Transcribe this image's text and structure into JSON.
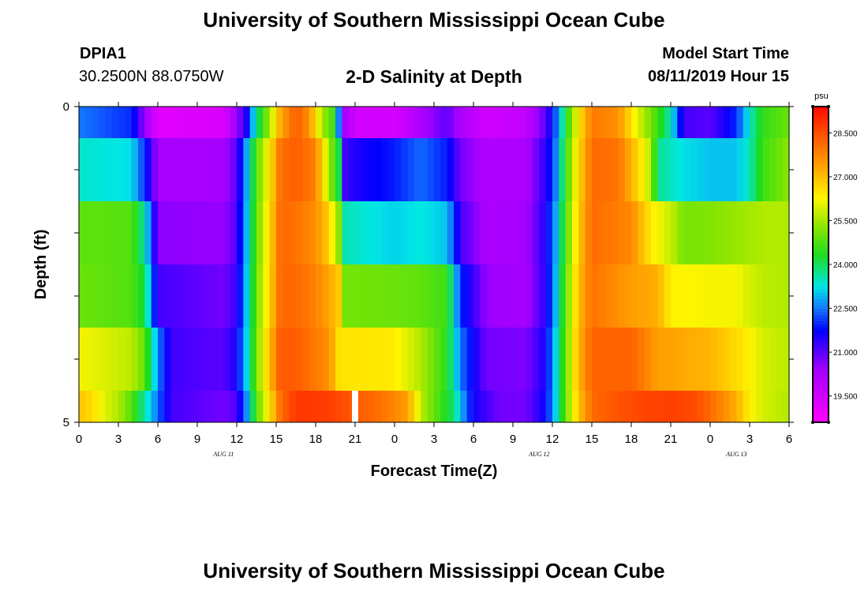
{
  "header": {
    "title": "University of Southern Mississippi Ocean Cube",
    "station": "DPIA1",
    "coords": "30.2500N 88.0750W",
    "chart_title": "2-D Salinity at Depth",
    "model_start_label": "Model Start Time",
    "model_start_value": "08/11/2019 Hour 15",
    "footer_title": "University of Southern Mississippi Ocean Cube"
  },
  "chart_data": {
    "type": "heatmap",
    "title": "2-D Salinity at Depth",
    "xlabel": "Forecast Time(Z)",
    "ylabel": "Depth (ft)",
    "units": "psu",
    "x_tick_labels": [
      "0",
      "3",
      "6",
      "9",
      "12",
      "15",
      "18",
      "21",
      "0",
      "3",
      "6",
      "9",
      "12",
      "15",
      "18",
      "21",
      "0",
      "3",
      "6"
    ],
    "y_tick_labels": [
      "0",
      "5"
    ],
    "y_range": [
      0,
      5
    ],
    "x_range_hours": [
      0,
      54
    ],
    "date_labels": [
      {
        "label": "AUG 11",
        "hour": 11
      },
      {
        "label": "AUG 12",
        "hour": 35
      },
      {
        "label": "AUG 13",
        "hour": 50
      }
    ],
    "colorbar": {
      "min": 18.6,
      "max": 29.4,
      "tick_values": [
        28.5,
        27.0,
        25.5,
        24.0,
        22.5,
        21.0,
        19.5
      ],
      "tick_labels": [
        "28.500",
        "27.000",
        "25.500",
        "24.000",
        "22.500",
        "21.000",
        "19.500"
      ]
    },
    "missing_marker": {
      "hour": 21,
      "layer": 5
    },
    "layers": [
      {
        "depth_range": "0-0.5",
        "salinity": [
          [
            0,
            22.5
          ],
          [
            4,
            22.0
          ],
          [
            5,
            20.5
          ],
          [
            6,
            19.2
          ],
          [
            11,
            19.3
          ],
          [
            12,
            20.5
          ],
          [
            12.7,
            21.4
          ],
          [
            13.5,
            23.7
          ],
          [
            14.5,
            25.5
          ],
          [
            15.3,
            27.2
          ],
          [
            16.5,
            28.3
          ],
          [
            17.5,
            27.6
          ],
          [
            18.5,
            25.5
          ],
          [
            19.5,
            24.5
          ],
          [
            20,
            20.6
          ],
          [
            21,
            19.5
          ],
          [
            24,
            19.4
          ],
          [
            26,
            20.2
          ],
          [
            28,
            21.0
          ],
          [
            29,
            20.2
          ],
          [
            31,
            19.5
          ],
          [
            34,
            19.8
          ],
          [
            35.5,
            21.0
          ],
          [
            36.3,
            22.4
          ],
          [
            37,
            24.2
          ],
          [
            38,
            26.4
          ],
          [
            39,
            27.9
          ],
          [
            41,
            27.6
          ],
          [
            42.5,
            26.0
          ],
          [
            44,
            24.6
          ],
          [
            45,
            23.5
          ],
          [
            46,
            21.2
          ],
          [
            48,
            21.0
          ],
          [
            50,
            22.0
          ],
          [
            51,
            23.4
          ],
          [
            52,
            24.5
          ],
          [
            54,
            25.0
          ]
        ]
      },
      {
        "depth_range": "0.5-1.5",
        "salinity": [
          [
            0,
            23.4
          ],
          [
            4,
            23.2
          ],
          [
            5,
            22.0
          ],
          [
            6,
            20.3
          ],
          [
            11,
            20.3
          ],
          [
            12,
            21.0
          ],
          [
            12.7,
            22.7
          ],
          [
            13.5,
            24.8
          ],
          [
            14.5,
            26.4
          ],
          [
            15.3,
            28.0
          ],
          [
            16.5,
            28.3
          ],
          [
            18,
            27.8
          ],
          [
            19,
            25.5
          ],
          [
            19.8,
            24.0
          ],
          [
            20,
            21.1
          ],
          [
            21,
            21.5
          ],
          [
            24,
            21.9
          ],
          [
            26,
            22.4
          ],
          [
            28,
            21.9
          ],
          [
            29,
            20.8
          ],
          [
            31,
            20.1
          ],
          [
            34,
            20.2
          ],
          [
            35.5,
            21.4
          ],
          [
            36.3,
            22.6
          ],
          [
            37,
            24.5
          ],
          [
            38,
            26.6
          ],
          [
            39,
            28.1
          ],
          [
            41,
            28.0
          ],
          [
            42.5,
            26.7
          ],
          [
            43.5,
            25.6
          ],
          [
            44,
            23.7
          ],
          [
            46,
            23.2
          ],
          [
            48,
            23.0
          ],
          [
            50,
            23.0
          ],
          [
            51,
            23.5
          ],
          [
            52,
            24.6
          ],
          [
            54,
            25.3
          ]
        ]
      },
      {
        "depth_range": "1.5-2.5",
        "salinity": [
          [
            0,
            24.9
          ],
          [
            4,
            24.8
          ],
          [
            5,
            23.6
          ],
          [
            6,
            20.6
          ],
          [
            11,
            20.5
          ],
          [
            12,
            21.1
          ],
          [
            12.7,
            22.8
          ],
          [
            13.5,
            24.9
          ],
          [
            14.5,
            26.6
          ],
          [
            15.3,
            28.1
          ],
          [
            16.5,
            28.0
          ],
          [
            18,
            27.6
          ],
          [
            19,
            26.8
          ],
          [
            19.8,
            25.2
          ],
          [
            20,
            23.6
          ],
          [
            21,
            23.4
          ],
          [
            24,
            23.1
          ],
          [
            26,
            23.3
          ],
          [
            28,
            23.0
          ],
          [
            29,
            21.2
          ],
          [
            31,
            20.2
          ],
          [
            34,
            20.3
          ],
          [
            35.5,
            21.5
          ],
          [
            36.3,
            22.9
          ],
          [
            37,
            24.7
          ],
          [
            38,
            26.8
          ],
          [
            39,
            28.1
          ],
          [
            42,
            27.7
          ],
          [
            43.5,
            26.4
          ],
          [
            45,
            25.8
          ],
          [
            46,
            25.1
          ],
          [
            48,
            25.2
          ],
          [
            50,
            25.4
          ],
          [
            51,
            25.5
          ],
          [
            52,
            25.6
          ],
          [
            54,
            25.6
          ]
        ]
      },
      {
        "depth_range": "2.5-3.5",
        "salinity": [
          [
            0,
            25.0
          ],
          [
            4,
            24.8
          ],
          [
            5,
            24.1
          ],
          [
            6,
            21.2
          ],
          [
            11,
            20.8
          ],
          [
            12,
            21.3
          ],
          [
            12.7,
            22.9
          ],
          [
            13.5,
            25.0
          ],
          [
            14.5,
            26.7
          ],
          [
            15.3,
            28.1
          ],
          [
            16.5,
            28.1
          ],
          [
            18,
            27.8
          ],
          [
            19,
            27.3
          ],
          [
            19.8,
            26.8
          ],
          [
            20,
            25.1
          ],
          [
            24,
            25.0
          ],
          [
            26,
            24.9
          ],
          [
            28,
            24.6
          ],
          [
            29,
            22.0
          ],
          [
            31,
            20.5
          ],
          [
            34,
            20.3
          ],
          [
            35.5,
            21.4
          ],
          [
            36.3,
            23.0
          ],
          [
            37,
            24.9
          ],
          [
            38,
            27.0
          ],
          [
            39,
            28.0
          ],
          [
            42,
            27.4
          ],
          [
            44,
            27.2
          ],
          [
            45,
            26.3
          ],
          [
            48,
            26.2
          ],
          [
            50,
            26.2
          ],
          [
            51,
            25.9
          ],
          [
            52,
            25.7
          ],
          [
            54,
            25.6
          ]
        ]
      },
      {
        "depth_range": "3.5-4.5",
        "salinity": [
          [
            0,
            26.2
          ],
          [
            4,
            25.7
          ],
          [
            5,
            24.9
          ],
          [
            6,
            22.6
          ],
          [
            7,
            21.2
          ],
          [
            11,
            21.0
          ],
          [
            12,
            21.6
          ],
          [
            12.7,
            23.0
          ],
          [
            13.5,
            25.1
          ],
          [
            14.5,
            27.0
          ],
          [
            15.3,
            28.3
          ],
          [
            16.5,
            28.3
          ],
          [
            18,
            27.9
          ],
          [
            19,
            27.6
          ],
          [
            19.8,
            26.5
          ],
          [
            24,
            26.4
          ],
          [
            26,
            25.6
          ],
          [
            28,
            24.4
          ],
          [
            29,
            22.5
          ],
          [
            31,
            20.8
          ],
          [
            34,
            20.7
          ],
          [
            35.5,
            21.6
          ],
          [
            36.3,
            23.2
          ],
          [
            37,
            25.0
          ],
          [
            38,
            27.1
          ],
          [
            39,
            28.2
          ],
          [
            42,
            28.2
          ],
          [
            44,
            27.4
          ],
          [
            48,
            27.1
          ],
          [
            50,
            26.6
          ],
          [
            51,
            26.3
          ],
          [
            52,
            25.9
          ],
          [
            54,
            25.7
          ]
        ]
      },
      {
        "depth_range": "4.5-5",
        "salinity": [
          [
            0,
            26.9
          ],
          [
            1,
            26.6
          ],
          [
            2,
            26.0
          ],
          [
            3,
            25.6
          ],
          [
            4,
            24.8
          ],
          [
            5,
            23.6
          ],
          [
            6,
            22.4
          ],
          [
            7,
            21.2
          ],
          [
            11,
            20.8
          ],
          [
            12,
            21.1
          ],
          [
            12.7,
            22.5
          ],
          [
            13.5,
            24.8
          ],
          [
            14.5,
            26.5
          ],
          [
            15.3,
            28.0
          ],
          [
            16.5,
            28.8
          ],
          [
            19,
            28.7
          ],
          [
            20,
            28.5
          ],
          [
            23,
            28.0
          ],
          [
            25,
            27.4
          ],
          [
            26,
            25.7
          ],
          [
            27.5,
            24.6
          ],
          [
            28.5,
            23.9
          ],
          [
            29,
            23.0
          ],
          [
            30,
            21.6
          ],
          [
            32,
            20.8
          ],
          [
            34,
            20.8
          ],
          [
            35.5,
            21.7
          ],
          [
            36.3,
            23.2
          ],
          [
            37,
            25.0
          ],
          [
            38,
            26.9
          ],
          [
            39,
            28.1
          ],
          [
            41,
            28.4
          ],
          [
            43,
            28.6
          ],
          [
            45,
            28.7
          ],
          [
            47,
            28.5
          ],
          [
            48,
            28.1
          ],
          [
            50,
            27.2
          ],
          [
            51,
            26.3
          ],
          [
            52,
            25.9
          ],
          [
            54,
            25.6
          ]
        ]
      }
    ]
  }
}
